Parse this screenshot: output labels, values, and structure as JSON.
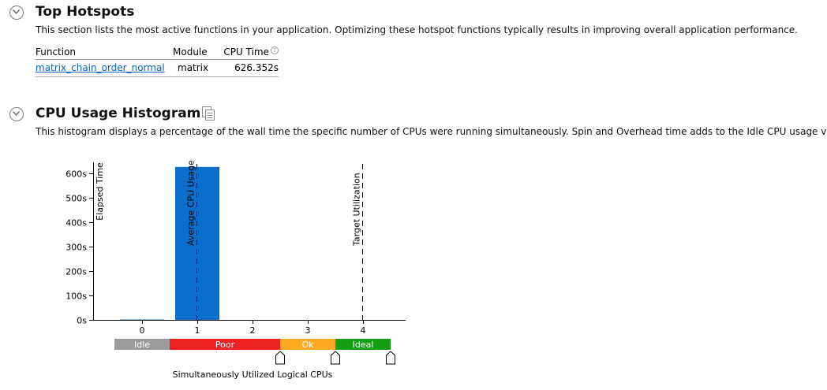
{
  "hotspots": {
    "title": "Top Hotspots",
    "description": "This section lists the most active functions in your application. Optimizing these hotspot functions typically results in improving overall application performance.",
    "columns": [
      "Function",
      "Module",
      "CPU Time"
    ],
    "help_glyph": "?",
    "rows": [
      {
        "function": "matrix_chain_order_normal",
        "module": "matrix",
        "cpu_time": "626.352s"
      }
    ]
  },
  "histogram": {
    "title": "CPU Usage Histogram",
    "description": "This histogram displays a percentage of the wall time the specific number of CPUs were running simultaneously. Spin and Overhead time adds to the Idle CPU usage value.",
    "copy_icon": "copy-icon"
  },
  "chart_data": {
    "type": "bar",
    "categories": [
      "0",
      "1",
      "2",
      "3",
      "4"
    ],
    "values": [
      1.5,
      626.352,
      0,
      0,
      0
    ],
    "y_tick_labels": [
      "0s",
      "100s",
      "200s",
      "300s",
      "400s",
      "500s",
      "600s"
    ],
    "ylim": [
      0,
      650
    ],
    "ylabel": "Elapsed Time",
    "xlabel": "Simultaneously Utilized Logical CPUs",
    "bar_color": "#0a6ecc",
    "markers": [
      {
        "label": "Average CPU Usage",
        "x": 1
      },
      {
        "label": "Target Utilization",
        "x": 4
      }
    ],
    "utilization_bands": [
      {
        "label": "Idle",
        "from": -0.5,
        "to": 0.5,
        "color": "#9b9b9b"
      },
      {
        "label": "Poor",
        "from": 0.5,
        "to": 2.5,
        "color": "#ee2222"
      },
      {
        "label": "Ok",
        "from": 2.5,
        "to": 3.5,
        "color": "#ffaa22"
      },
      {
        "label": "Ideal",
        "from": 3.5,
        "to": 4.5,
        "color": "#12a012"
      }
    ],
    "slider_handles": [
      2.5,
      3.5,
      4.5
    ]
  }
}
